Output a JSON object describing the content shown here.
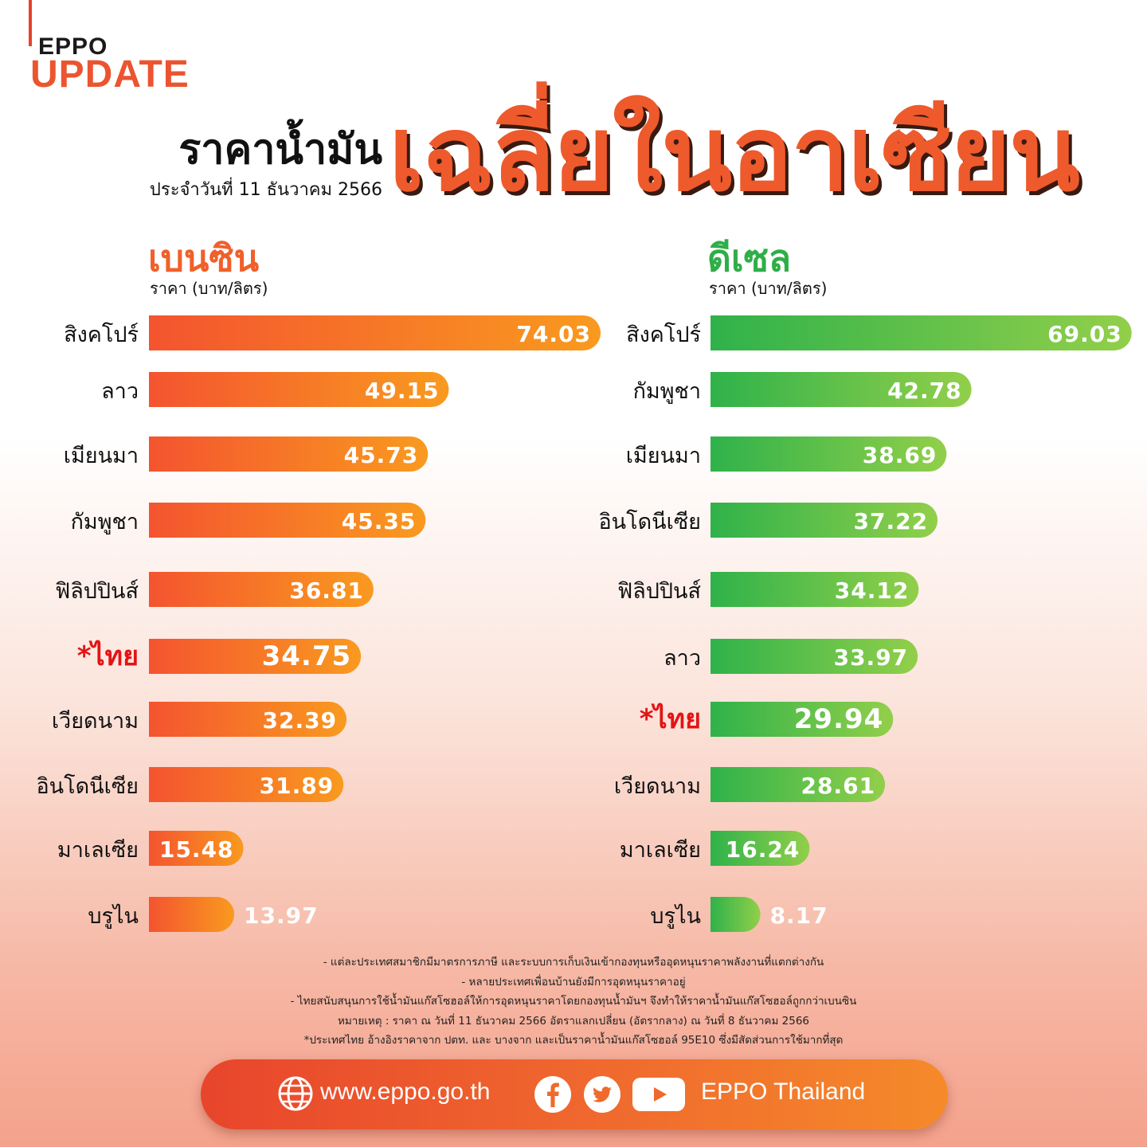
{
  "header": {
    "logo_top": "EPPO",
    "logo_bottom": "UPDATE",
    "title_main": "ราคาน้ำมัน",
    "title_date": "ประจำวันที่ 11 ธันวาคม 2566",
    "title_big": "เฉลี่ยในอาเซียน"
  },
  "colors": {
    "gasoline_start": "#f4542f",
    "gasoline_end": "#f99a1f",
    "diesel_start": "#2fb24a",
    "diesel_end": "#92cf4a",
    "thai_label": "#e31414",
    "accent": "#ee5a2c"
  },
  "chart_data": [
    {
      "type": "bar",
      "orientation": "horizontal",
      "title": "เบนซิน",
      "unit": "ราคา (บาท/ลิตร)",
      "categories": [
        "สิงคโปร์",
        "ลาว",
        "เมียนมา",
        "กัมพูชา",
        "ฟิลิปปินส์",
        "*ไทย",
        "เวียดนาม",
        "อินโดนีเซีย",
        "มาเลเซีย",
        "บรูไน"
      ],
      "values": [
        74.03,
        49.15,
        45.73,
        45.35,
        36.81,
        34.75,
        32.39,
        31.89,
        15.48,
        13.97
      ],
      "labels": [
        "74.03",
        "49.15",
        "45.73",
        "45.35",
        "36.81",
        "34.75",
        "32.39",
        "31.89",
        "15.48",
        "13.97"
      ],
      "highlight": "*ไทย"
    },
    {
      "type": "bar",
      "orientation": "horizontal",
      "title": "ดีเซล",
      "unit": "ราคา (บาท/ลิตร)",
      "categories": [
        "สิงคโปร์",
        "กัมพูชา",
        "เมียนมา",
        "อินโดนีเซีย",
        "ฟิลิปปินส์",
        "ลาว",
        "*ไทย",
        "เวียดนาม",
        "มาเลเซีย",
        "บรูไน"
      ],
      "values": [
        69.03,
        42.78,
        38.69,
        37.22,
        34.12,
        33.97,
        29.94,
        28.61,
        16.24,
        8.17
      ],
      "labels": [
        "69.03",
        "42.78",
        "38.69",
        "37.22",
        "34.12",
        "33.97",
        "29.94",
        "28.61",
        "16.24",
        "8.17"
      ],
      "highlight": "*ไทย"
    }
  ],
  "notes": [
    "- แต่ละประเทศสมาชิกมีมาตรการภาษี และระบบการเก็บเงินเข้ากองทุนหรืออุดหนุนราคาพลังงานที่แตกต่างกัน",
    "- หลายประเทศเพื่อนบ้านยังมีการอุดหนุนราคาอยู่",
    "- ไทยสนับสนุนการใช้น้ำมันแก๊สโซฮอล์ให้การอุดหนุนราคาโดยกองทุนน้ำมันฯ จึงทำให้ราคาน้ำมันแก๊สโซฮอล์ถูกกว่าเบนซิน",
    "หมายเหตุ : ราคา ณ วันที่ 11 ธันวาคม 2566 อัตราแลกเปลี่ยน (อัตรากลาง) ณ วันที่ 8 ธันวาคม 2566",
    "*ประเทศไทย อ้างอิงราคาจาก ปตท. และ บางจาก และเป็นราคาน้ำมันแก๊สโซฮอล์ 95E10 ซึ่งมีสัดส่วนการใช้มากที่สุด"
  ],
  "footer": {
    "website": "www.eppo.go.th",
    "social_name": "EPPO Thailand",
    "icons": [
      "globe-icon",
      "facebook-icon",
      "twitter-icon",
      "youtube-icon"
    ]
  }
}
